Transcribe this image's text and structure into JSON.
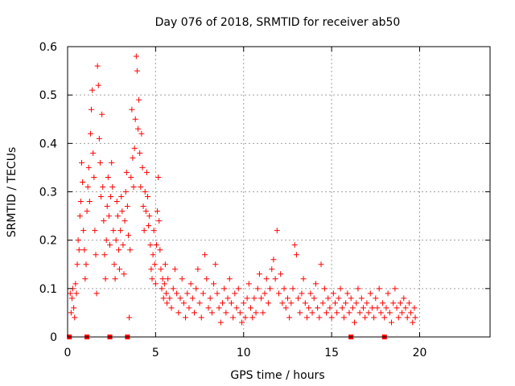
{
  "chart_data": {
    "type": "scatter",
    "title": "Day 076 of 2018, SRMTID for receiver ab50",
    "xlabel": "GPS time / hours",
    "ylabel": "SRMTID / TECUs",
    "xlim": [
      0,
      24
    ],
    "ylim": [
      0,
      0.6
    ],
    "x_ticks": [
      "0",
      "5",
      "10",
      "15",
      "20"
    ],
    "y_ticks": [
      "0",
      "0.1",
      "0.2",
      "0.3",
      "0.4",
      "0.5",
      "0.6"
    ],
    "grid": true,
    "marker": "+",
    "color": "#ff0000",
    "series": [
      {
        "name": "SRMTID",
        "points": [
          [
            0.15,
            0.09
          ],
          [
            0.2,
            0.05
          ],
          [
            0.25,
            0.08
          ],
          [
            0.3,
            0.1
          ],
          [
            0.35,
            0.06
          ],
          [
            0.4,
            0.04
          ],
          [
            0.45,
            0.11
          ],
          [
            0.5,
            0.09
          ],
          [
            0.55,
            0.15
          ],
          [
            0.6,
            0.2
          ],
          [
            0.65,
            0.18
          ],
          [
            0.7,
            0.25
          ],
          [
            0.75,
            0.28
          ],
          [
            0.8,
            0.36
          ],
          [
            0.85,
            0.32
          ],
          [
            0.9,
            0.22
          ],
          [
            0.95,
            0.18
          ],
          [
            1.0,
            0.12
          ],
          [
            1.05,
            0.15
          ],
          [
            1.1,
            0.26
          ],
          [
            1.15,
            0.31
          ],
          [
            1.2,
            0.35
          ],
          [
            1.25,
            0.28
          ],
          [
            1.3,
            0.42
          ],
          [
            1.35,
            0.47
          ],
          [
            1.4,
            0.51
          ],
          [
            1.45,
            0.38
          ],
          [
            1.5,
            0.33
          ],
          [
            1.55,
            0.22
          ],
          [
            1.6,
            0.17
          ],
          [
            1.65,
            0.09
          ],
          [
            1.7,
            0.56
          ],
          [
            1.75,
            0.52
          ],
          [
            1.8,
            0.41
          ],
          [
            1.85,
            0.36
          ],
          [
            1.9,
            0.29
          ],
          [
            1.95,
            0.46
          ],
          [
            2.0,
            0.31
          ],
          [
            2.05,
            0.24
          ],
          [
            2.1,
            0.17
          ],
          [
            2.15,
            0.12
          ],
          [
            2.2,
            0.2
          ],
          [
            2.25,
            0.27
          ],
          [
            2.3,
            0.33
          ],
          [
            2.35,
            0.25
          ],
          [
            2.4,
            0.19
          ],
          [
            2.45,
            0.29
          ],
          [
            2.5,
            0.36
          ],
          [
            2.55,
            0.31
          ],
          [
            2.6,
            0.22
          ],
          [
            2.65,
            0.15
          ],
          [
            2.7,
            0.12
          ],
          [
            2.75,
            0.2
          ],
          [
            2.8,
            0.28
          ],
          [
            2.85,
            0.25
          ],
          [
            2.9,
            0.18
          ],
          [
            2.95,
            0.14
          ],
          [
            3.0,
            0.22
          ],
          [
            3.05,
            0.29
          ],
          [
            3.1,
            0.26
          ],
          [
            3.15,
            0.19
          ],
          [
            3.2,
            0.13
          ],
          [
            3.25,
            0.24
          ],
          [
            3.3,
            0.3
          ],
          [
            3.35,
            0.34
          ],
          [
            3.4,
            0.27
          ],
          [
            3.45,
            0.21
          ],
          [
            3.5,
            0.04
          ],
          [
            3.55,
            0.18
          ],
          [
            3.6,
            0.33
          ],
          [
            3.65,
            0.47
          ],
          [
            3.7,
            0.37
          ],
          [
            3.75,
            0.31
          ],
          [
            3.8,
            0.39
          ],
          [
            3.85,
            0.45
          ],
          [
            3.9,
            0.58
          ],
          [
            3.95,
            0.55
          ],
          [
            4.0,
            0.43
          ],
          [
            4.05,
            0.49
          ],
          [
            4.1,
            0.38
          ],
          [
            4.15,
            0.31
          ],
          [
            4.2,
            0.42
          ],
          [
            4.25,
            0.35
          ],
          [
            4.3,
            0.27
          ],
          [
            4.35,
            0.22
          ],
          [
            4.4,
            0.3
          ],
          [
            4.45,
            0.26
          ],
          [
            4.5,
            0.34
          ],
          [
            4.55,
            0.29
          ],
          [
            4.6,
            0.23
          ],
          [
            4.65,
            0.25
          ],
          [
            4.7,
            0.19
          ],
          [
            4.75,
            0.14
          ],
          [
            4.8,
            0.12
          ],
          [
            4.85,
            0.17
          ],
          [
            4.9,
            0.22
          ],
          [
            4.95,
            0.15
          ],
          [
            5.0,
            0.11
          ],
          [
            5.05,
            0.19
          ],
          [
            5.1,
            0.26
          ],
          [
            5.15,
            0.33
          ],
          [
            5.2,
            0.24
          ],
          [
            5.25,
            0.18
          ],
          [
            5.3,
            0.14
          ],
          [
            5.35,
            0.1
          ],
          [
            5.4,
            0.12
          ],
          [
            5.45,
            0.08
          ],
          [
            5.5,
            0.11
          ],
          [
            5.55,
            0.15
          ],
          [
            5.6,
            0.09
          ],
          [
            5.65,
            0.07
          ],
          [
            5.7,
            0.12
          ],
          [
            5.8,
            0.08
          ],
          [
            5.9,
            0.06
          ],
          [
            6.0,
            0.1
          ],
          [
            6.1,
            0.14
          ],
          [
            6.2,
            0.09
          ],
          [
            6.3,
            0.05
          ],
          [
            6.4,
            0.08
          ],
          [
            6.5,
            0.12
          ],
          [
            6.6,
            0.07
          ],
          [
            6.7,
            0.04
          ],
          [
            6.8,
            0.09
          ],
          [
            6.9,
            0.06
          ],
          [
            7.0,
            0.11
          ],
          [
            7.1,
            0.08
          ],
          [
            7.2,
            0.05
          ],
          [
            7.3,
            0.1
          ],
          [
            7.4,
            0.14
          ],
          [
            7.5,
            0.07
          ],
          [
            7.6,
            0.04
          ],
          [
            7.7,
            0.09
          ],
          [
            7.8,
            0.17
          ],
          [
            7.9,
            0.12
          ],
          [
            8.0,
            0.06
          ],
          [
            8.1,
            0.08
          ],
          [
            8.2,
            0.05
          ],
          [
            8.3,
            0.11
          ],
          [
            8.4,
            0.15
          ],
          [
            8.5,
            0.09
          ],
          [
            8.6,
            0.06
          ],
          [
            8.7,
            0.03
          ],
          [
            8.8,
            0.07
          ],
          [
            8.9,
            0.1
          ],
          [
            9.0,
            0.05
          ],
          [
            9.1,
            0.08
          ],
          [
            9.2,
            0.12
          ],
          [
            9.3,
            0.07
          ],
          [
            9.4,
            0.04
          ],
          [
            9.5,
            0.09
          ],
          [
            9.6,
            0.06
          ],
          [
            9.7,
            0.1
          ],
          [
            9.8,
            0.05
          ],
          [
            9.9,
            0.03
          ],
          [
            10.0,
            0.07
          ],
          [
            10.1,
            0.04
          ],
          [
            10.2,
            0.08
          ],
          [
            10.3,
            0.11
          ],
          [
            10.4,
            0.06
          ],
          [
            10.5,
            0.04
          ],
          [
            10.6,
            0.08
          ],
          [
            10.7,
            0.05
          ],
          [
            10.8,
            0.1
          ],
          [
            10.9,
            0.13
          ],
          [
            11.0,
            0.08
          ],
          [
            11.1,
            0.05
          ],
          [
            11.2,
            0.09
          ],
          [
            11.3,
            0.12
          ],
          [
            11.4,
            0.07
          ],
          [
            11.5,
            0.1
          ],
          [
            11.6,
            0.14
          ],
          [
            11.7,
            0.16
          ],
          [
            11.8,
            0.12
          ],
          [
            11.9,
            0.22
          ],
          [
            12.0,
            0.09
          ],
          [
            12.1,
            0.13
          ],
          [
            12.2,
            0.07
          ],
          [
            12.3,
            0.1
          ],
          [
            12.4,
            0.06
          ],
          [
            12.5,
            0.08
          ],
          [
            12.6,
            0.04
          ],
          [
            12.7,
            0.07
          ],
          [
            12.8,
            0.1
          ],
          [
            12.9,
            0.19
          ],
          [
            13.0,
            0.17
          ],
          [
            13.1,
            0.08
          ],
          [
            13.2,
            0.05
          ],
          [
            13.3,
            0.09
          ],
          [
            13.4,
            0.12
          ],
          [
            13.5,
            0.07
          ],
          [
            13.6,
            0.04
          ],
          [
            13.7,
            0.06
          ],
          [
            13.8,
            0.09
          ],
          [
            13.9,
            0.05
          ],
          [
            14.0,
            0.08
          ],
          [
            14.1,
            0.11
          ],
          [
            14.2,
            0.06
          ],
          [
            14.3,
            0.04
          ],
          [
            14.4,
            0.15
          ],
          [
            14.5,
            0.07
          ],
          [
            14.6,
            0.1
          ],
          [
            14.7,
            0.05
          ],
          [
            14.8,
            0.08
          ],
          [
            14.9,
            0.06
          ],
          [
            15.0,
            0.04
          ],
          [
            15.1,
            0.09
          ],
          [
            15.2,
            0.07
          ],
          [
            15.3,
            0.05
          ],
          [
            15.4,
            0.08
          ],
          [
            15.5,
            0.1
          ],
          [
            15.6,
            0.06
          ],
          [
            15.7,
            0.04
          ],
          [
            15.8,
            0.07
          ],
          [
            15.9,
            0.09
          ],
          [
            16.0,
            0.05
          ],
          [
            16.1,
            0.08
          ],
          [
            16.2,
            0.06
          ],
          [
            16.3,
            0.03
          ],
          [
            16.4,
            0.07
          ],
          [
            16.5,
            0.1
          ],
          [
            16.6,
            0.05
          ],
          [
            16.7,
            0.08
          ],
          [
            16.8,
            0.06
          ],
          [
            16.9,
            0.04
          ],
          [
            17.0,
            0.07
          ],
          [
            17.1,
            0.05
          ],
          [
            17.2,
            0.09
          ],
          [
            17.3,
            0.06
          ],
          [
            17.4,
            0.04
          ],
          [
            17.5,
            0.08
          ],
          [
            17.6,
            0.06
          ],
          [
            17.7,
            0.1
          ],
          [
            17.8,
            0.05
          ],
          [
            17.9,
            0.07
          ],
          [
            18.0,
            0.04
          ],
          [
            18.1,
            0.06
          ],
          [
            18.2,
            0.09
          ],
          [
            18.3,
            0.05
          ],
          [
            18.4,
            0.03
          ],
          [
            18.5,
            0.07
          ],
          [
            18.6,
            0.1
          ],
          [
            18.7,
            0.06
          ],
          [
            18.8,
            0.04
          ],
          [
            18.9,
            0.07
          ],
          [
            19.0,
            0.05
          ],
          [
            19.1,
            0.08
          ],
          [
            19.2,
            0.06
          ],
          [
            19.3,
            0.04
          ],
          [
            19.4,
            0.07
          ],
          [
            19.5,
            0.05
          ],
          [
            19.6,
            0.03
          ],
          [
            19.7,
            0.06
          ],
          [
            19.75,
            0.04
          ]
        ]
      }
    ],
    "baseline_markers_x": [
      0.1,
      1.1,
      2.4,
      3.4,
      16.1,
      18.0
    ]
  }
}
